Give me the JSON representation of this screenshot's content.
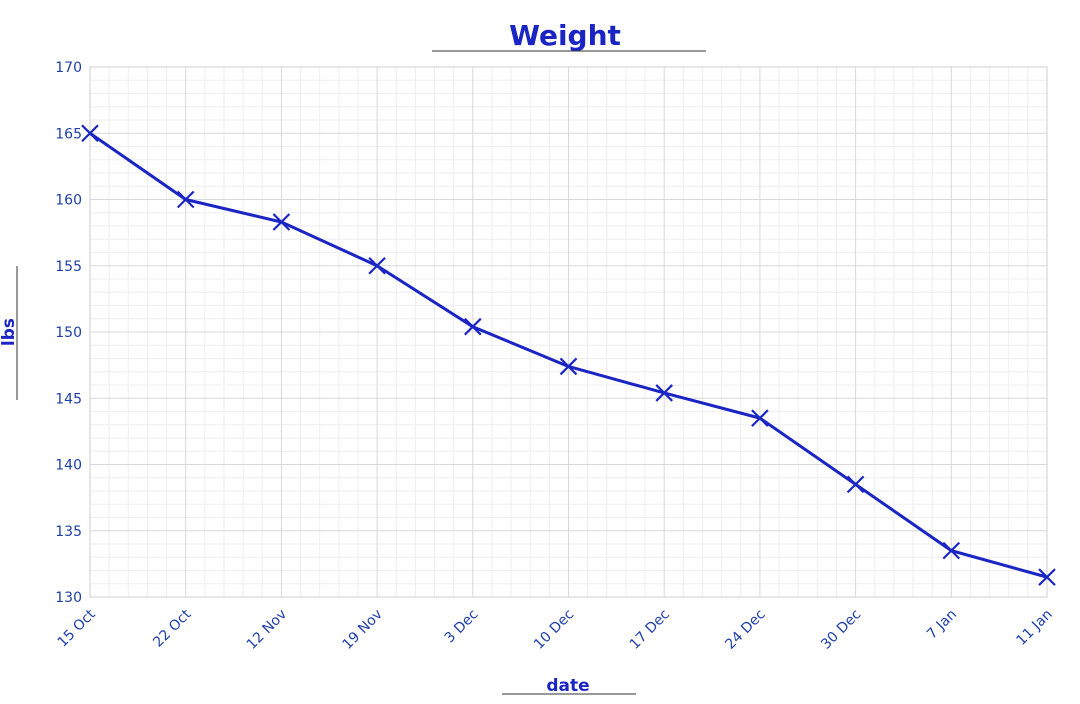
{
  "colors": {
    "series": "#1a25c4",
    "text": "#1f3fa8",
    "title": "#1a25c4",
    "grid_major": "#d8d8d8",
    "grid_minor": "#eeeeee"
  },
  "chart_data": {
    "type": "line",
    "title": "Weight",
    "xlabel": "date",
    "ylabel": "lbs",
    "ylim": [
      130,
      170
    ],
    "yticks": [
      130,
      135,
      140,
      145,
      150,
      155,
      160,
      165,
      170
    ],
    "grid": true,
    "marker": "x",
    "categories": [
      "15 Oct",
      "22 Oct",
      "12 Nov",
      "19 Nov",
      "3 Dec",
      "10 Dec",
      "17 Dec",
      "24 Dec",
      "30 Dec",
      "7 Jan",
      "11 Jan"
    ],
    "series": [
      {
        "values": [
          165,
          160,
          158.3,
          155,
          150.4,
          147.4,
          145.4,
          143.5,
          138.5,
          133.5,
          131.5
        ]
      }
    ]
  }
}
